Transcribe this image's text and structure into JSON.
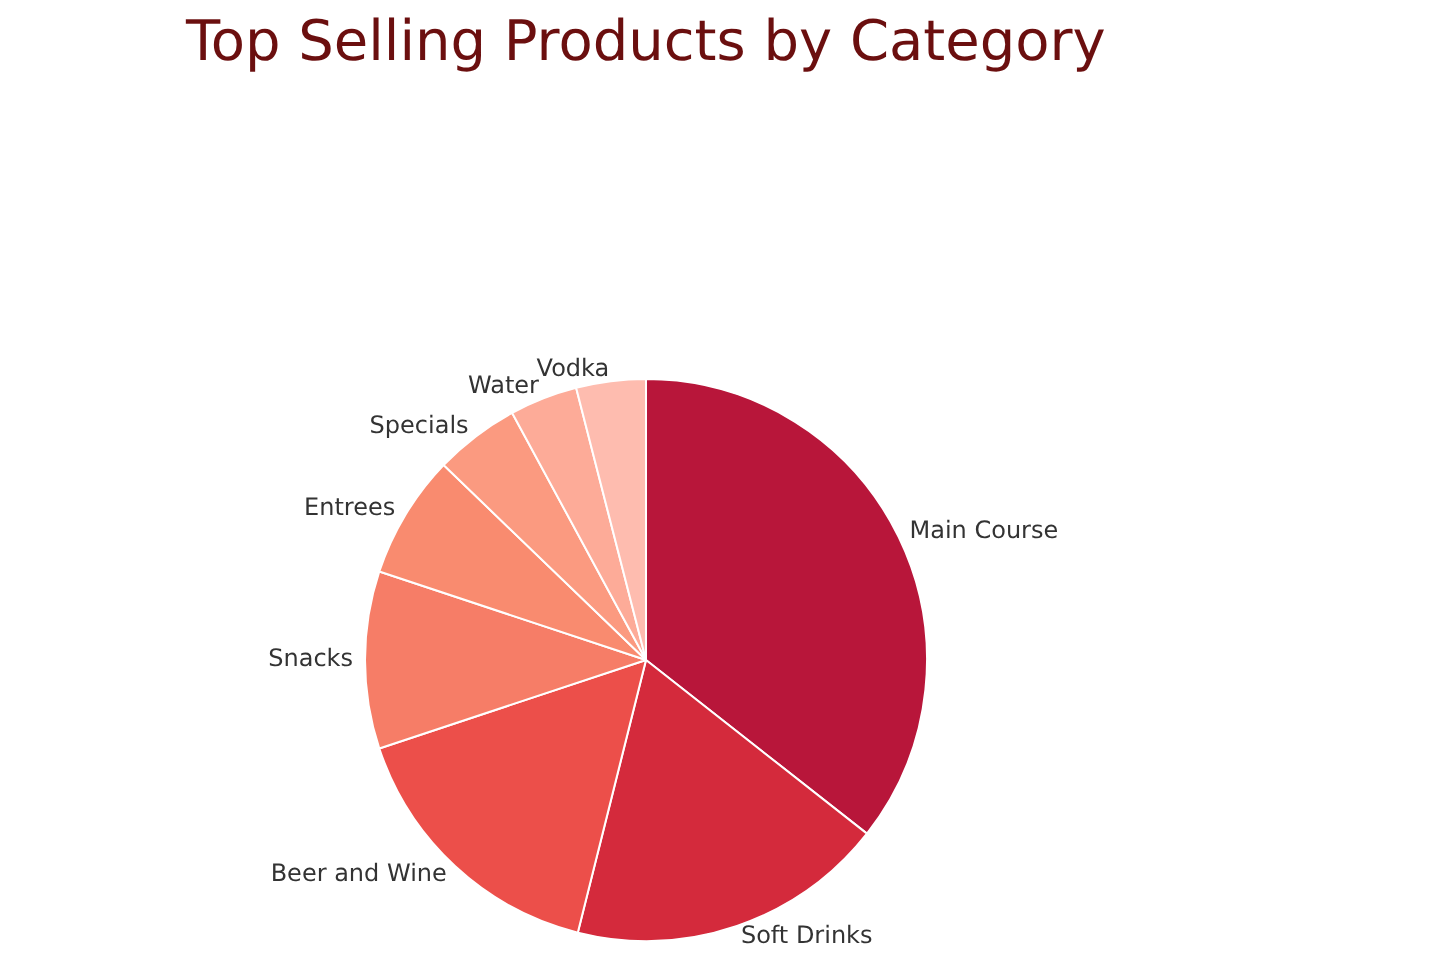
{
  "chart_data": {
    "type": "pie",
    "title": "Top Selling Products by Category",
    "categories": [
      "Main Course",
      "Soft Drinks",
      "Beer and Wine",
      "Snacks",
      "Entrees",
      "Specials",
      "Water",
      "Vodka"
    ],
    "values": [
      35.6,
      18.3,
      16,
      10.2,
      7.1,
      4.9,
      3.9,
      4
    ],
    "colors": [
      "#b8163a",
      "#d42a3c",
      "#ec4f4a",
      "#f67d67",
      "#f98b6f",
      "#fb9a80",
      "#fdab98",
      "#febcaf"
    ],
    "legend": false
  }
}
